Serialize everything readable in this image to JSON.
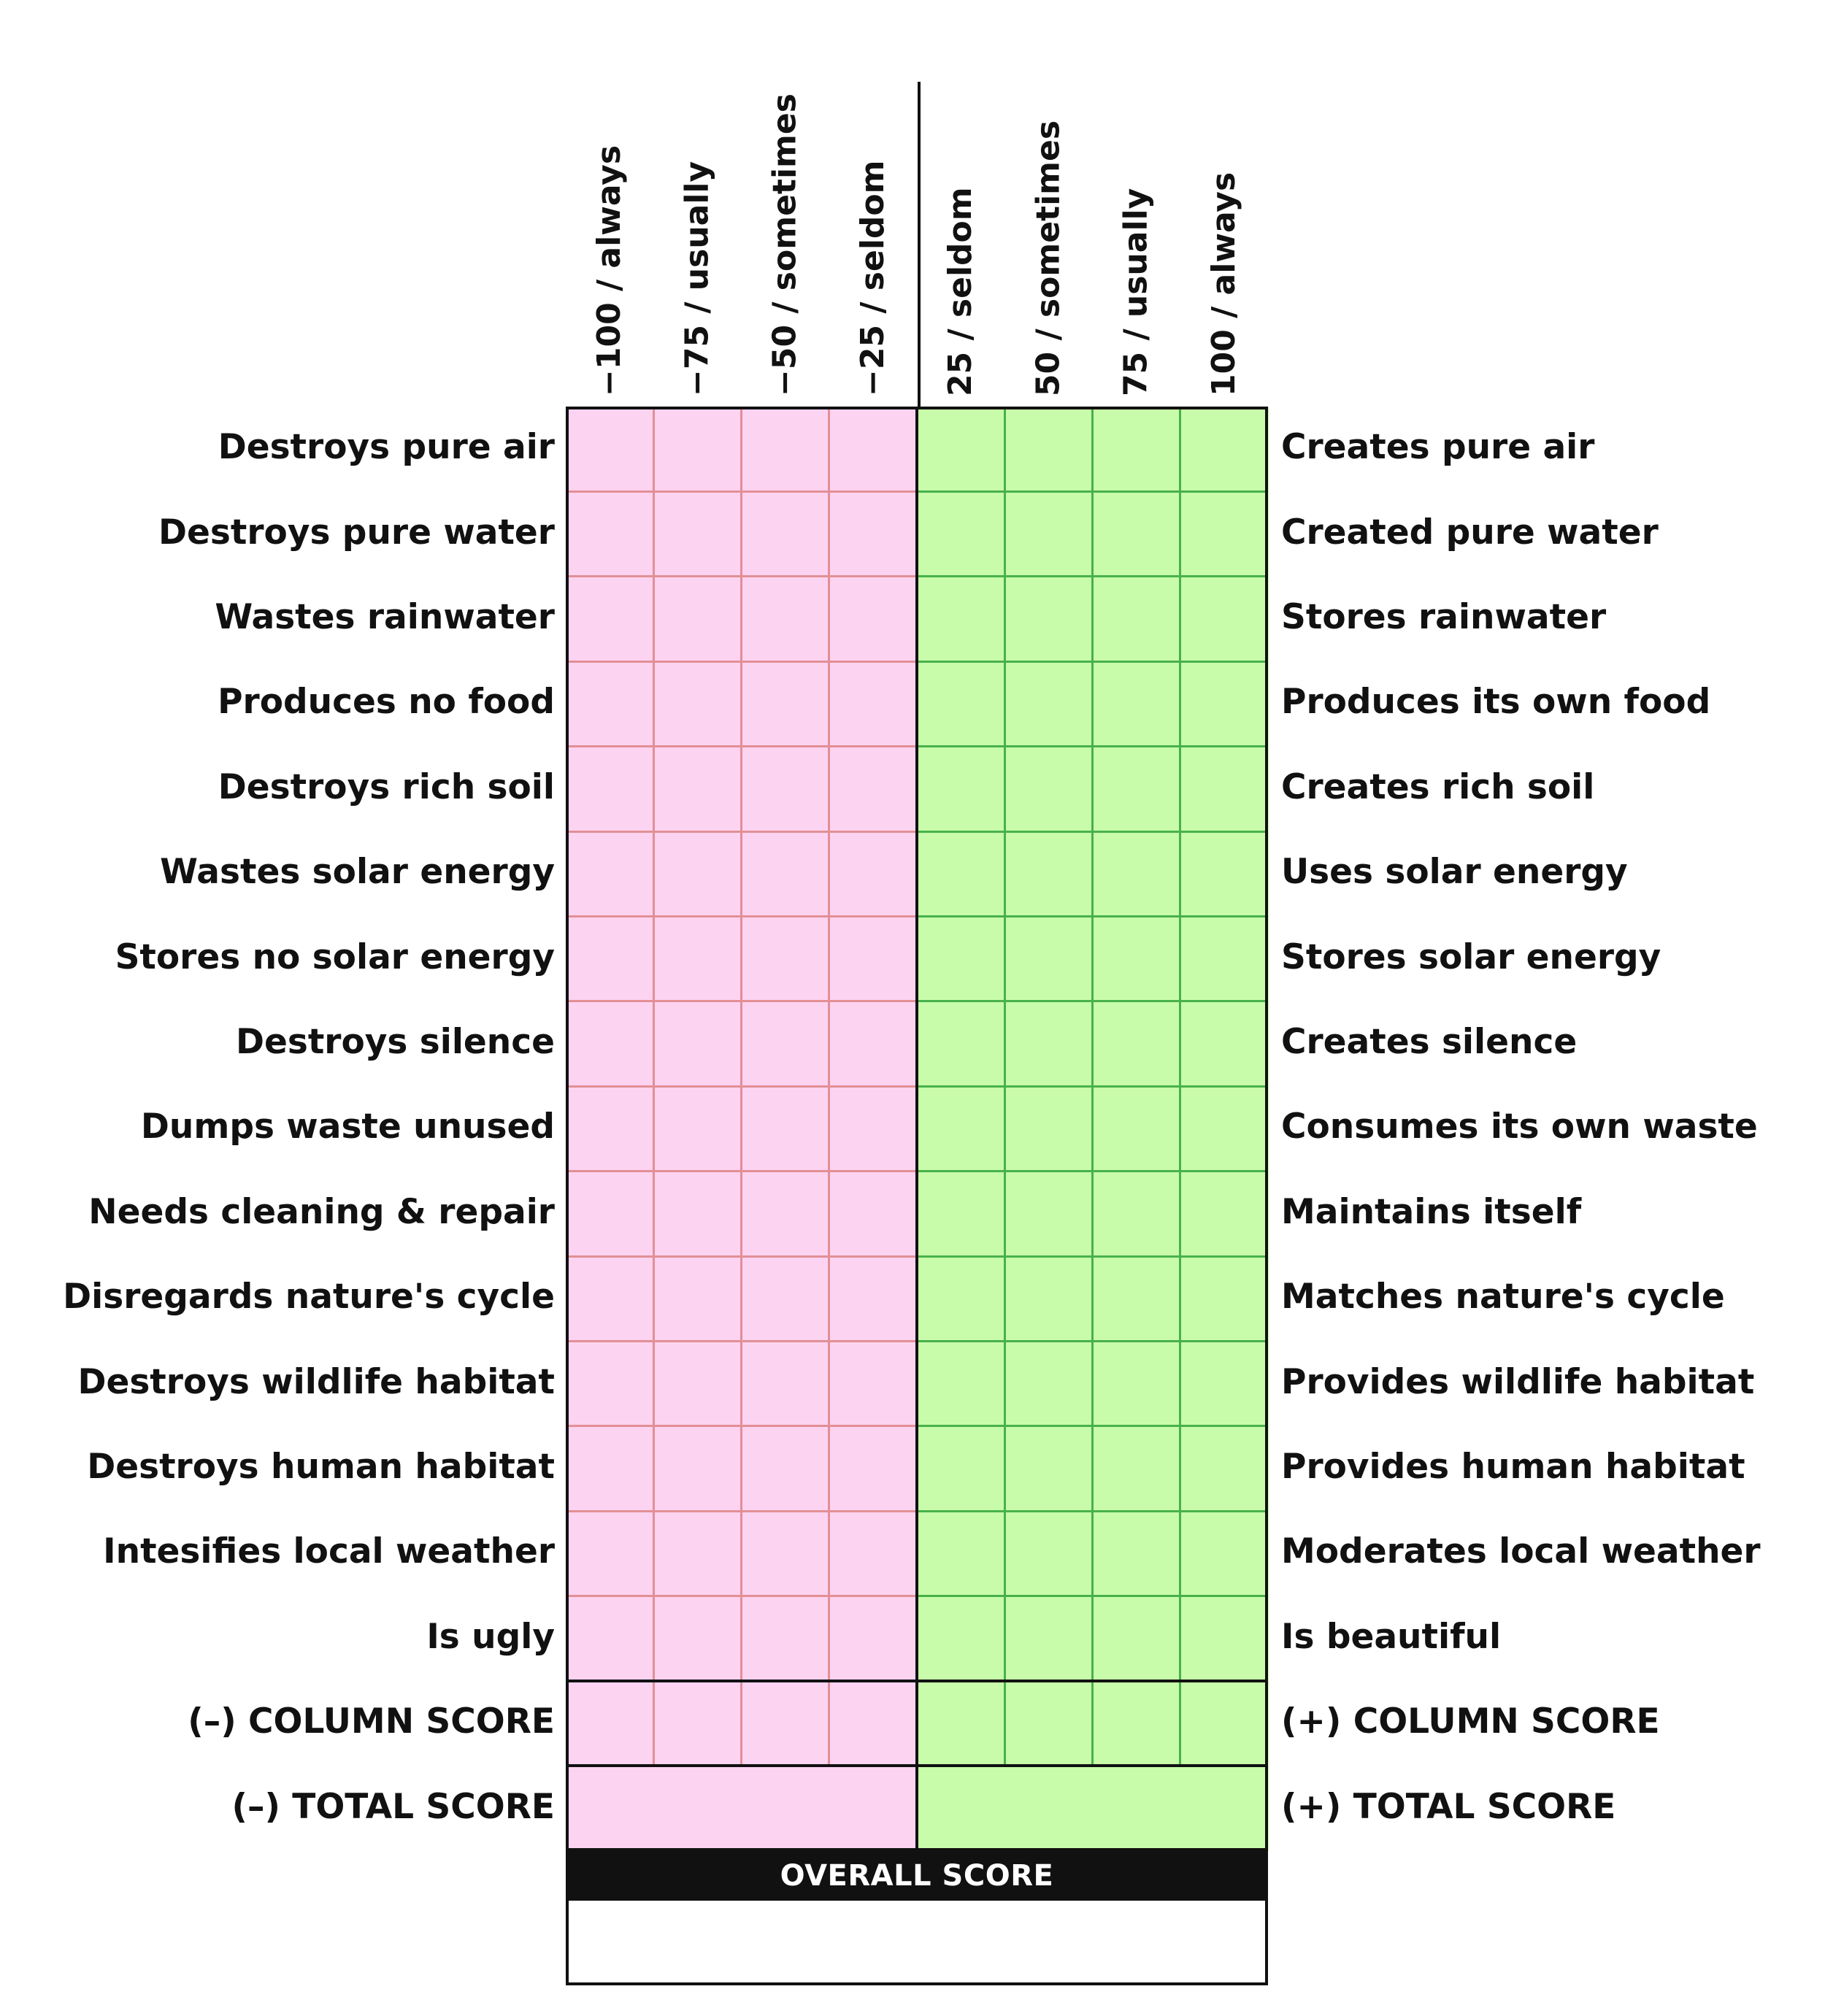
{
  "columns": [
    "−100 / always",
    "−75 / usually",
    "−50 / sometimes",
    "−25 / seldom",
    "25 / seldom",
    "50 / sometimes",
    "75 / usually",
    "100 / always"
  ],
  "rows": [
    {
      "negative": "Destroys pure air",
      "positive": "Creates pure air"
    },
    {
      "negative": "Destroys pure water",
      "positive": "Created pure water"
    },
    {
      "negative": "Wastes rainwater",
      "positive": "Stores rainwater"
    },
    {
      "negative": "Produces no food",
      "positive": "Produces its own food"
    },
    {
      "negative": "Destroys rich soil",
      "positive": "Creates rich soil"
    },
    {
      "negative": "Wastes solar energy",
      "positive": "Uses solar energy"
    },
    {
      "negative": "Stores no solar energy",
      "positive": "Stores solar energy"
    },
    {
      "negative": "Destroys silence",
      "positive": "Creates silence"
    },
    {
      "negative": "Dumps waste unused",
      "positive": "Consumes its own waste"
    },
    {
      "negative": "Needs cleaning & repair",
      "positive": "Maintains itself"
    },
    {
      "negative": "Disregards nature's cycle",
      "positive": "Matches nature's cycle"
    },
    {
      "negative": "Destroys wildlife habitat",
      "positive": "Provides wildlife habitat"
    },
    {
      "negative": "Destroys human habitat",
      "positive": "Provides human habitat"
    },
    {
      "negative": "Intesifies local weather",
      "positive": "Moderates local weather"
    },
    {
      "negative": "Is ugly",
      "positive": "Is beautiful"
    }
  ],
  "column_score": {
    "negative": "(–) COLUMN SCORE",
    "positive": "(+) COLUMN SCORE"
  },
  "total_score": {
    "negative": "(–) TOTAL SCORE",
    "positive": "(+) TOTAL SCORE"
  },
  "overall_score_label": "OVERALL SCORE",
  "colors": {
    "negative_fill": "#fdd3f2",
    "negative_line": "#e28f95",
    "positive_fill": "#c8fcaa",
    "positive_line": "#48b14a",
    "frame": "#111111"
  }
}
